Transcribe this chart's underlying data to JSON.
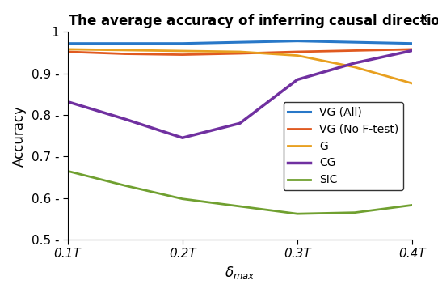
{
  "title": "The average accuracy of inferring causal direction vs. $\\delta_{max}$",
  "xlabel": "$\\delta_{max}$",
  "ylabel": "Accuracy",
  "xlim": [
    0.1,
    0.4
  ],
  "ylim": [
    0.5,
    1.0
  ],
  "xtick_vals": [
    0.1,
    0.2,
    0.3,
    0.4
  ],
  "xtick_labels": [
    "0.1T",
    "0.2T",
    "0.3T",
    "0.4T"
  ],
  "ytick_vals": [
    0.5,
    0.6,
    0.7,
    0.8,
    0.9,
    1.0
  ],
  "x": [
    0.1,
    0.15,
    0.2,
    0.25,
    0.3,
    0.35,
    0.4
  ],
  "VG_All": [
    0.972,
    0.972,
    0.972,
    0.975,
    0.978,
    0.975,
    0.972
  ],
  "VG_NoFtest": [
    0.952,
    0.947,
    0.945,
    0.948,
    0.952,
    0.955,
    0.958
  ],
  "G": [
    0.958,
    0.956,
    0.954,
    0.952,
    0.943,
    0.915,
    0.876
  ],
  "CG": [
    0.832,
    0.79,
    0.745,
    0.78,
    0.885,
    0.925,
    0.955
  ],
  "SIC": [
    0.665,
    0.63,
    0.598,
    0.58,
    0.562,
    0.565,
    0.583
  ],
  "colors": {
    "VG_All": "#2878c8",
    "VG_NoFtest": "#e05a20",
    "G": "#e8a020",
    "CG": "#7030a0",
    "SIC": "#70a030"
  },
  "linewidths": {
    "VG_All": 2.2,
    "VG_NoFtest": 2.0,
    "G": 2.0,
    "CG": 2.5,
    "SIC": 2.0
  },
  "legend_labels": [
    "VG (All)",
    "VG (No F-test)",
    "G",
    "CG",
    "SIC"
  ],
  "legend_keys": [
    "VG_All",
    "VG_NoFtest",
    "G",
    "CG",
    "SIC"
  ]
}
